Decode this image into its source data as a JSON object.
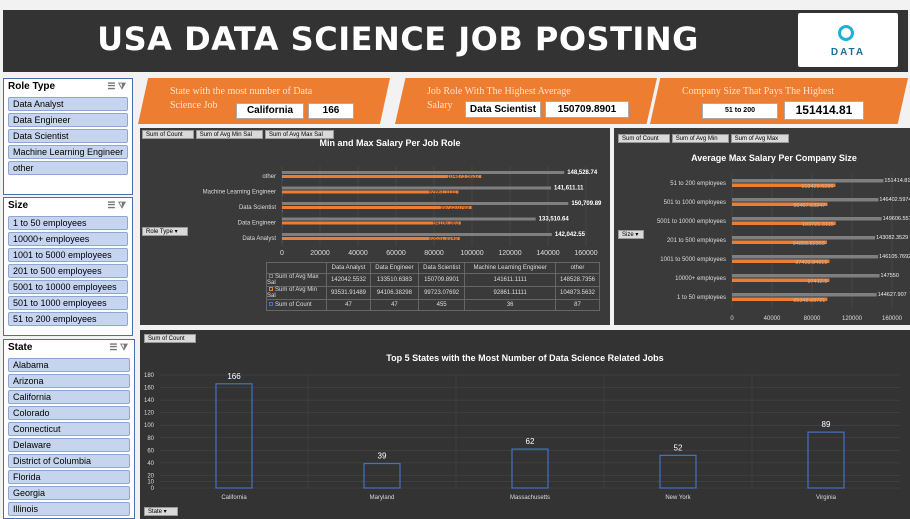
{
  "header": {
    "title": "USA DATA SCIENCE JOB POSTING",
    "logo_text": "DATA"
  },
  "slicers": {
    "role": {
      "title": "Role Type",
      "items": [
        "Data Analyst",
        "Data Engineer",
        "Data Scientist",
        "Machine Learning Engineer",
        "other"
      ]
    },
    "size": {
      "title": "Size",
      "items": [
        "1 to 50 employees",
        "10000+ employees",
        "1001 to 5000 employees",
        "201 to 500 employees",
        "5001 to 10000 employees",
        "501 to 1000 employees",
        "51 to 200 employees"
      ]
    },
    "state": {
      "title": "State",
      "items": [
        "Alabama",
        "Arizona",
        "California",
        "Colorado",
        "Connecticut",
        "Delaware",
        "District of Columbia",
        "Florida",
        "Georgia",
        "Illinois"
      ]
    }
  },
  "kpis": {
    "state": {
      "label1": "State with the most number of Data",
      "label2": "Science Job",
      "value1": "California",
      "value2": "166"
    },
    "role": {
      "label1": "Job Role With The Highest Average",
      "label2": "Salary",
      "value1": "Data Scientist",
      "value2": "150709.8901"
    },
    "size": {
      "label1": "Company Size That Pays The Highest",
      "value1": "51 to 200",
      "value2": "151414.81"
    }
  },
  "chart_data": [
    {
      "type": "bar",
      "title": "Min and Max Salary Per Job Role",
      "field_buttons": [
        "Sum of Count",
        "Sum of Avg Min Sal",
        "Sum of Avg Max Sal"
      ],
      "filter_button": "Role Type",
      "categories": [
        "Data Analyst",
        "Data Engineer",
        "Data Scientist",
        "Machine Learning Engineer",
        "other"
      ],
      "series": [
        {
          "name": "Sum of Avg Max Sal",
          "values": [
            142042.5532,
            133510.6383,
            150709.8901,
            141611.1111,
            148528.7356
          ],
          "labels": [
            "142,042.55",
            "133,510.64",
            "150,709.89",
            "141,611.11",
            "148,528.74"
          ],
          "color": "#7f7f7f"
        },
        {
          "name": "Sum of Avg Min Sal",
          "values": [
            93531.91489,
            94106.38298,
            99723.07692,
            92861.11111,
            104873.5632
          ],
          "color": "#ed7d31"
        },
        {
          "name": "Sum of Count",
          "values": [
            47,
            47,
            455,
            36,
            87
          ],
          "color": "#4472c4"
        }
      ],
      "xticks": [
        "0",
        "20000",
        "40000",
        "60000",
        "80000",
        "100000",
        "120000",
        "140000",
        "160000"
      ],
      "xlim": [
        0,
        160000
      ],
      "table": [
        [
          "142042.5532",
          "133510.6383",
          "150709.8901",
          "141611.1111",
          "148528.7356"
        ],
        [
          "93531.91489",
          "94106.38298",
          "99723.07692",
          "92861.11111",
          "104873.5632"
        ],
        [
          "47",
          "47",
          "455",
          "36",
          "87"
        ]
      ],
      "table_headers": [
        "Data Analyst",
        "Data Engineer",
        "Data Scientist",
        "Machine Learning Engineer",
        "other"
      ]
    },
    {
      "type": "bar",
      "title": "Average Max Salary Per Company Size",
      "field_buttons": [
        "Sum of Count",
        "Sum of Avg Min",
        "Sum of Avg Max"
      ],
      "filter_button": "Size",
      "categories": [
        "1 to 50 employees",
        "10000+ employees",
        "1001 to 5000 employees",
        "201 to 500 employees",
        "5001 to 10000 employees",
        "501 to 1000 employees",
        "51 to 200 employees"
      ],
      "series": [
        {
          "name": "Sum of Avg Max",
          "values": [
            144627.907,
            147550,
            146105.7692,
            143082.3529,
            149606.5574,
            146402.5974,
            151414.8148
          ],
          "labels": [
            "144627.907",
            "147550",
            "146105.7692",
            "143082.3529",
            "149606.5574",
            "146402.5974",
            "151414.8148"
          ],
          "color": "#7f7f7f"
        },
        {
          "name": "Sum of Avg Min",
          "values": [
            95348.83721,
            97412.5,
            97403.84615,
            94858.82353,
            103721.3115,
            95467.53247,
            103429.6296
          ],
          "labels": [
            "95348.83721",
            "97412.5",
            "97403.84615",
            "94858.82353",
            "103721.3115",
            "95467.53247",
            "103429.6296"
          ],
          "color": "#ed7d31"
        }
      ],
      "xticks": [
        "0",
        "40000",
        "80000",
        "120000",
        "160000"
      ],
      "xlim": [
        0,
        160000
      ]
    },
    {
      "type": "bar",
      "title": "Top 5 States with the Most Number  of Data Science Related Jobs",
      "field_buttons": [
        "Sum of Count"
      ],
      "filter_button": "State",
      "categories": [
        "California",
        "Maryland",
        "Massachusetts",
        "New York",
        "Virginia"
      ],
      "values": [
        166,
        39,
        62,
        52,
        89
      ],
      "yticks": [
        "0",
        "10",
        "20",
        "40",
        "60",
        "80",
        "100",
        "120",
        "140",
        "160",
        "180"
      ],
      "ylim": [
        0,
        180
      ]
    }
  ]
}
